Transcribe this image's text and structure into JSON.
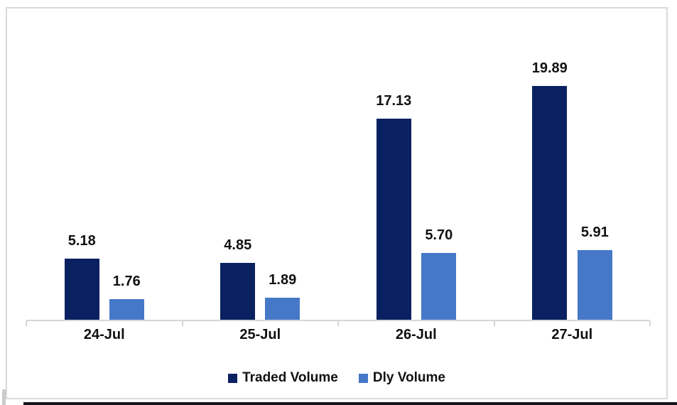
{
  "chart": {
    "background": "#ffffff",
    "border_color": "#d9d9d9",
    "axis_color": "#d6d6d6",
    "label_color": "#111111",
    "bottom_bar_color": "#15151f"
  },
  "chart_data": {
    "type": "bar",
    "title": "",
    "xlabel": "",
    "ylabel": "",
    "categories": [
      "24-Jul",
      "25-Jul",
      "26-Jul",
      "27-Jul"
    ],
    "series": [
      {
        "name": "Traded Volume",
        "color": "#0a2161",
        "values": [
          5.18,
          4.85,
          17.13,
          19.89
        ]
      },
      {
        "name": "Dly Volume",
        "color": "#4678c8",
        "values": [
          1.76,
          1.89,
          5.7,
          5.91
        ]
      }
    ],
    "data_labels": [
      [
        "5.18",
        "4.85",
        "17.13",
        "19.89"
      ],
      [
        "1.76",
        "1.89",
        "5.70",
        "5.91"
      ]
    ],
    "value_label_decimals": 2,
    "ylim": [
      0,
      25.4
    ],
    "grid": false,
    "legend_position": "bottom"
  }
}
